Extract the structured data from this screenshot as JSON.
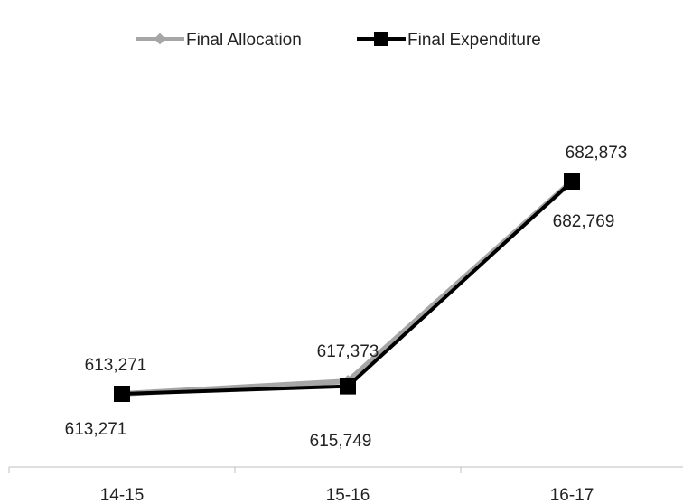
{
  "chart_data": {
    "type": "line",
    "categories": [
      "14-15",
      "15-16",
      "16-17"
    ],
    "series": [
      {
        "name": "Final Allocation",
        "values": [
          613271,
          617373,
          682873
        ],
        "data_labels": [
          "613,271",
          "617,373",
          "682,873"
        ],
        "color": "#a6a6a6",
        "marker": "diamond"
      },
      {
        "name": "Final Expenditure",
        "values": [
          613271,
          615749,
          682769
        ],
        "data_labels": [
          "613,271",
          "615,749",
          "682,769"
        ],
        "color": "#000000",
        "marker": "square"
      }
    ],
    "legend_position": "top",
    "grid": false,
    "ylim": [
      605000,
      690000
    ]
  }
}
